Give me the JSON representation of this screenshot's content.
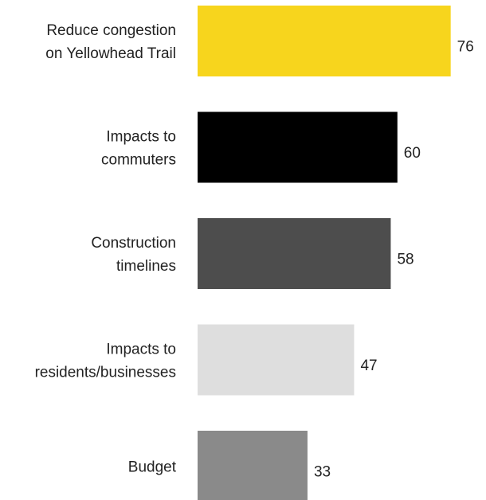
{
  "chart_data": {
    "type": "bar",
    "orientation": "horizontal",
    "categories": [
      [
        "Reduce congestion",
        "on Yellowhead Trail"
      ],
      [
        "Impacts to",
        "commuters"
      ],
      [
        "Construction",
        "timelines"
      ],
      [
        "Impacts to",
        "residents/businesses"
      ],
      [
        "Budget"
      ]
    ],
    "values": [
      76,
      60,
      58,
      47,
      33
    ],
    "colors": [
      "#f7d51d",
      "#000000",
      "#4d4d4d",
      "#dedede",
      "#8a8a8a"
    ],
    "value_labels": [
      "76",
      "60",
      "58",
      "47",
      "33"
    ],
    "title": "",
    "xlabel": "",
    "ylabel": "",
    "grid": false,
    "legend": "none"
  }
}
